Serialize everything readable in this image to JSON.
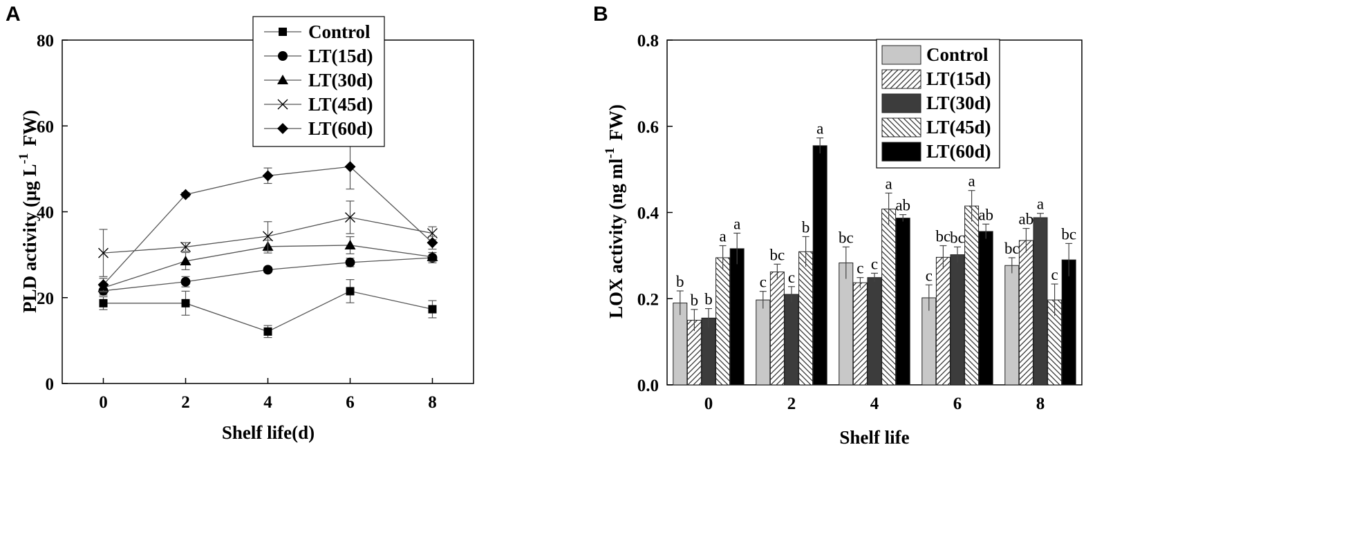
{
  "chart_data": [
    {
      "panel": "A",
      "type": "line",
      "xlabel": "Shelf life(d)",
      "ylabel": "PLD activity (μg L-1 FW)",
      "ylabel_parts": {
        "main": "PLD activity (μg L",
        "sup": "-1",
        "tail": "FW)"
      },
      "xlim": [
        -1,
        9
      ],
      "ylim": [
        0,
        80
      ],
      "x": [
        0,
        2,
        4,
        6,
        8
      ],
      "xticks": [
        0,
        2,
        4,
        6,
        8
      ],
      "yticks": [
        0,
        20,
        40,
        60,
        80
      ],
      "legend_position": "top-center",
      "series": [
        {
          "name": "Control",
          "marker": "square",
          "values": [
            18.7,
            18.7,
            12.1,
            21.5,
            17.3
          ],
          "errors": [
            1.5,
            2.8,
            1.4,
            2.7,
            2.0
          ]
        },
        {
          "name": "LT(15d)",
          "marker": "circle",
          "values": [
            21.6,
            23.7,
            26.5,
            28.2,
            29.3
          ],
          "errors": [
            1.0,
            1.2,
            0.6,
            1.0,
            1.2
          ]
        },
        {
          "name": "LT(30d)",
          "marker": "triangle",
          "values": [
            22.3,
            28.5,
            31.9,
            32.2,
            29.5
          ],
          "errors": [
            1.0,
            2.0,
            1.5,
            2.0,
            1.0
          ]
        },
        {
          "name": "LT(45d)",
          "marker": "cross",
          "values": [
            30.4,
            31.8,
            34.3,
            38.7,
            35.0
          ],
          "errors": [
            5.5,
            1.0,
            3.4,
            3.8,
            1.5
          ]
        },
        {
          "name": "LT(60d)",
          "marker": "diamond",
          "values": [
            23.0,
            44.0,
            48.4,
            50.5,
            32.8
          ],
          "errors": [
            1.5,
            0.5,
            1.8,
            5.2,
            1.5
          ]
        }
      ]
    },
    {
      "panel": "B",
      "type": "bar",
      "xlabel": "Shelf life",
      "ylabel": "LOX activity (ng ml-1 FW)",
      "ylabel_parts": {
        "main": "LOX activity (ng ml",
        "sup": "-1",
        "tail": "FW)"
      },
      "categories": [
        "0",
        "2",
        "4",
        "6",
        "8"
      ],
      "ylim": [
        0,
        0.8
      ],
      "yticks": [
        "0.0",
        "0.2",
        "0.4",
        "0.6",
        "0.8"
      ],
      "legend_position": "top-right",
      "series": [
        {
          "name": "Control",
          "fill": "light-gray",
          "values": [
            0.19,
            0.197,
            0.283,
            0.202,
            0.277
          ],
          "errors": [
            0.028,
            0.02,
            0.037,
            0.03,
            0.018
          ],
          "labels": [
            "b",
            "c",
            "bc",
            "c",
            "bc"
          ]
        },
        {
          "name": "LT(15d)",
          "fill": "hatch-right",
          "values": [
            0.15,
            0.262,
            0.237,
            0.296,
            0.335
          ],
          "errors": [
            0.025,
            0.018,
            0.012,
            0.027,
            0.028
          ],
          "labels": [
            "b",
            "bc",
            "c",
            "bc",
            "ab"
          ]
        },
        {
          "name": "LT(30d)",
          "fill": "dark-gray",
          "values": [
            0.155,
            0.21,
            0.249,
            0.302,
            0.388
          ],
          "errors": [
            0.022,
            0.018,
            0.01,
            0.018,
            0.01
          ],
          "labels": [
            "b",
            "c",
            "c",
            "bc",
            "a"
          ]
        },
        {
          "name": "LT(45d)",
          "fill": "hatch-left",
          "values": [
            0.295,
            0.309,
            0.408,
            0.415,
            0.197
          ],
          "errors": [
            0.028,
            0.035,
            0.037,
            0.036,
            0.037
          ],
          "labels": [
            "a",
            "b",
            "a",
            "a",
            "c"
          ]
        },
        {
          "name": "LT(60d)",
          "fill": "black",
          "values": [
            0.316,
            0.555,
            0.387,
            0.356,
            0.29
          ],
          "errors": [
            0.036,
            0.018,
            0.008,
            0.017,
            0.038
          ],
          "labels": [
            "a",
            "a",
            "ab",
            "ab",
            "bc"
          ]
        }
      ]
    }
  ]
}
